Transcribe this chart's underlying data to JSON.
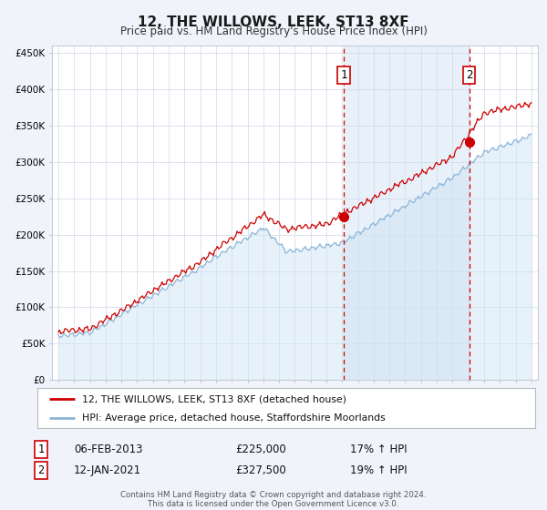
{
  "title": "12, THE WILLOWS, LEEK, ST13 8XF",
  "subtitle": "Price paid vs. HM Land Registry's House Price Index (HPI)",
  "legend_line1": "12, THE WILLOWS, LEEK, ST13 8XF (detached house)",
  "legend_line2": "HPI: Average price, detached house, Staffordshire Moorlands",
  "marker1_date": 2013.1,
  "marker1_price": 225000,
  "marker2_date": 2021.05,
  "marker2_price": 327500,
  "vline1_x": 2013.1,
  "vline2_x": 2021.05,
  "red_line_color": "#cc0000",
  "blue_line_color": "#8ab4d8",
  "blue_fill_color": "#d0e4f4",
  "shade_color": "#e8f0fa",
  "background_color": "#f0f4fa",
  "plot_bg_color": "#ffffff",
  "yticks": [
    0,
    50000,
    100000,
    150000,
    200000,
    250000,
    300000,
    350000,
    400000,
    450000
  ],
  "xlim_left": 1994.6,
  "xlim_right": 2025.4,
  "ylim_top": 460000,
  "footer_line1": "Contains HM Land Registry data © Crown copyright and database right 2024.",
  "footer_line2": "This data is licensed under the Open Government Licence v3.0.",
  "table_row1_num": "1",
  "table_row1_date": "06-FEB-2013",
  "table_row1_price": "£225,000",
  "table_row1_hpi": "17% ↑ HPI",
  "table_row2_num": "2",
  "table_row2_date": "12-JAN-2021",
  "table_row2_price": "£327,500",
  "table_row2_hpi": "19% ↑ HPI"
}
